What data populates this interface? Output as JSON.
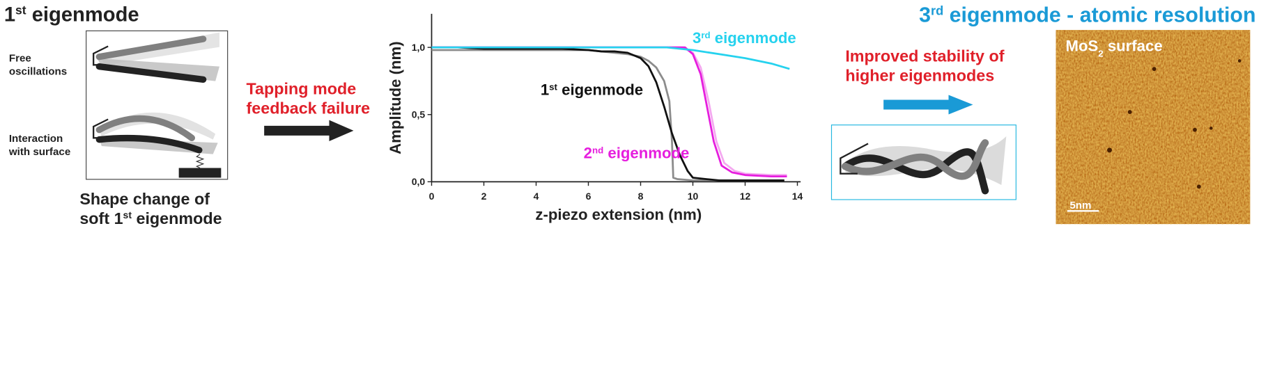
{
  "header": {
    "title": "1st eigenmode",
    "right_title": "3rd eigenmode - atomic resolution"
  },
  "left_panel": {
    "free_label": [
      "Free",
      "oscillations"
    ],
    "interaction_label": [
      "Interaction",
      "with surface"
    ],
    "caption": [
      "Shape change of",
      "soft 1st eigenmode"
    ]
  },
  "failure_text": [
    "Tapping mode",
    "feedback failure"
  ],
  "right_panel": {
    "stability_text": [
      "Improved stability of",
      "higher eigenmodes"
    ],
    "image_label": "MoS2 surface",
    "scale_bar": "5nm"
  },
  "chart_data": {
    "type": "line",
    "x_label": "z-piezo extension (nm)",
    "y_label": "Amplitude (nm)",
    "xlim": [
      0,
      14
    ],
    "ylim": [
      0,
      1.25
    ],
    "xticks": [
      0,
      2,
      4,
      6,
      8,
      10,
      12,
      14
    ],
    "yticks": [
      {
        "value": 0,
        "label": "0,0"
      },
      {
        "value": 0.5,
        "label": "0,5"
      },
      {
        "value": 1,
        "label": "1,0"
      }
    ],
    "series": [
      {
        "color": "#8c8c8c",
        "x": [
          0,
          1,
          2,
          3,
          4,
          5,
          6,
          6.5,
          7,
          7.5,
          8,
          8.3,
          8.6,
          8.9,
          9.1,
          9.2,
          9.25,
          9.4,
          10,
          11,
          12,
          13,
          13.5
        ],
        "values": [
          0.98,
          0.98,
          0.98,
          0.98,
          0.98,
          0.98,
          0.98,
          0.97,
          0.96,
          0.95,
          0.93,
          0.9,
          0.85,
          0.75,
          0.6,
          0.3,
          0.03,
          0.02,
          0.01,
          0.01,
          0.01,
          0.01,
          0.01
        ]
      },
      {
        "name": "1st eigenmode",
        "color": "#111111",
        "x": [
          0,
          1,
          2,
          3,
          4,
          5,
          6,
          6.5,
          7,
          7.5,
          8,
          8.3,
          8.6,
          8.9,
          9.2,
          9.5,
          9.8,
          10,
          10.5,
          11,
          12,
          13,
          13.5
        ],
        "values": [
          1,
          1,
          0.99,
          0.99,
          0.99,
          0.99,
          0.98,
          0.97,
          0.97,
          0.96,
          0.92,
          0.86,
          0.74,
          0.56,
          0.36,
          0.2,
          0.08,
          0.03,
          0.02,
          0.01,
          0.01,
          0.01,
          0.01
        ]
      },
      {
        "color": "#f4a8f0",
        "x": [
          0,
          2,
          4,
          6,
          8,
          9,
          9.6,
          10,
          10.3,
          10.6,
          10.9,
          11.2,
          11.6,
          12,
          13,
          13.6
        ],
        "values": [
          1,
          1,
          1,
          1,
          1,
          1,
          1,
          0.96,
          0.85,
          0.6,
          0.3,
          0.14,
          0.08,
          0.06,
          0.05,
          0.05
        ]
      },
      {
        "name": "2nd eigenmode",
        "color": "#e61ede",
        "x": [
          0,
          2,
          4,
          6,
          8,
          9,
          9.7,
          10,
          10.3,
          10.5,
          10.8,
          11.1,
          11.5,
          12,
          13,
          13.6
        ],
        "values": [
          1,
          1,
          1,
          1,
          1,
          1,
          1,
          0.95,
          0.8,
          0.6,
          0.3,
          0.12,
          0.07,
          0.05,
          0.04,
          0.04
        ]
      },
      {
        "name": "3rd eigenmode",
        "color": "#25d2ee",
        "x": [
          0,
          2,
          4,
          6,
          8,
          9,
          10,
          11,
          12,
          13,
          13.7
        ],
        "values": [
          1,
          1,
          1,
          1,
          1,
          1,
          0.98,
          0.95,
          0.92,
          0.88,
          0.84
        ]
      }
    ]
  }
}
